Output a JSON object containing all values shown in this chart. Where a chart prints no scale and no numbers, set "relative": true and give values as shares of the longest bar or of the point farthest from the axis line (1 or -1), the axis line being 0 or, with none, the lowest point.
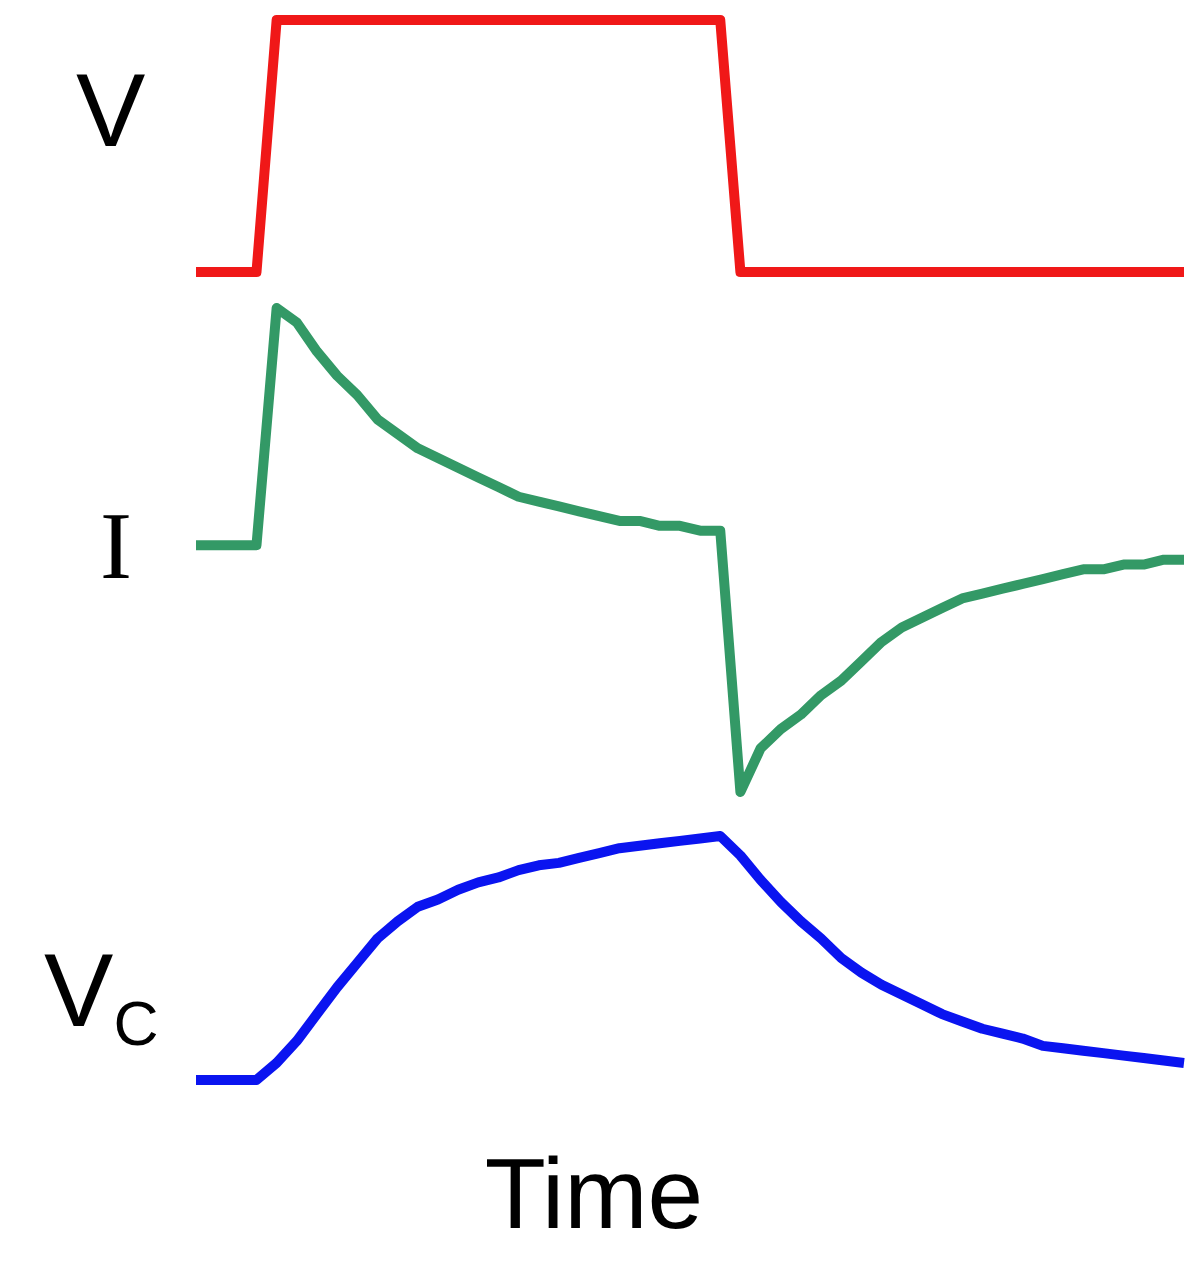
{
  "chart_data": [
    {
      "type": "line",
      "ylabel": "V",
      "relative": true,
      "grid": false,
      "legend": false,
      "marker": "none",
      "tick_labels": false,
      "categories": [
        null,
        null,
        null,
        null,
        null,
        null,
        null,
        null,
        null,
        null,
        null,
        null,
        null,
        null,
        null,
        null,
        null,
        null,
        null,
        null,
        null,
        null,
        null,
        null,
        null,
        null,
        null,
        null,
        null,
        null,
        null,
        null,
        null,
        null,
        null,
        null,
        null,
        null,
        null,
        null,
        null,
        null,
        null,
        null,
        null,
        null,
        null,
        null,
        null,
        null
      ],
      "series": [
        {
          "color": "#f01818",
          "values": [
            0,
            0,
            0,
            0,
            1,
            1,
            1,
            1,
            1,
            1,
            1,
            1,
            1,
            1,
            1,
            1,
            1,
            1,
            1,
            1,
            1,
            1,
            1,
            1,
            1,
            1,
            1,
            0,
            0,
            0,
            0,
            0,
            0,
            0,
            0,
            0,
            0,
            0,
            0,
            0,
            0,
            0,
            0,
            0,
            0,
            0,
            0,
            0,
            0,
            0
          ]
        }
      ]
    },
    {
      "type": "line",
      "ylabel": "I",
      "relative": true,
      "grid": false,
      "legend": false,
      "marker": "none",
      "tick_labels": false,
      "categories": [
        null,
        null,
        null,
        null,
        null,
        null,
        null,
        null,
        null,
        null,
        null,
        null,
        null,
        null,
        null,
        null,
        null,
        null,
        null,
        null,
        null,
        null,
        null,
        null,
        null,
        null,
        null,
        null,
        null,
        null,
        null,
        null,
        null,
        null,
        null,
        null,
        null,
        null,
        null,
        null,
        null,
        null,
        null,
        null,
        null,
        null,
        null,
        null,
        null,
        null
      ],
      "series": [
        {
          "color": "#339966",
          "values": [
            0.51,
            0.51,
            0.51,
            0.51,
            1,
            0.97,
            0.91,
            0.86,
            0.82,
            0.77,
            0.74,
            0.71,
            0.69,
            0.67,
            0.65,
            0.63,
            0.61,
            0.6,
            0.59,
            0.58,
            0.57,
            0.56,
            0.56,
            0.55,
            0.55,
            0.54,
            0.54,
            0,
            0.09,
            0.13,
            0.16,
            0.2,
            0.23,
            0.27,
            0.31,
            0.34,
            0.36,
            0.38,
            0.4,
            0.41,
            0.42,
            0.43,
            0.44,
            0.45,
            0.46,
            0.46,
            0.47,
            0.47,
            0.48,
            0.48
          ]
        }
      ]
    },
    {
      "type": "line",
      "ylabel": "V$_{C}$",
      "xlabel": "Time",
      "relative": true,
      "grid": false,
      "legend": false,
      "marker": "none",
      "tick_labels": false,
      "categories": [
        null,
        null,
        null,
        null,
        null,
        null,
        null,
        null,
        null,
        null,
        null,
        null,
        null,
        null,
        null,
        null,
        null,
        null,
        null,
        null,
        null,
        null,
        null,
        null,
        null,
        null,
        null,
        null,
        null,
        null,
        null,
        null,
        null,
        null,
        null,
        null,
        null,
        null,
        null,
        null,
        null,
        null,
        null,
        null,
        null,
        null,
        null,
        null,
        null,
        null
      ],
      "series": [
        {
          "color": "#0a14f0",
          "values": [
            0,
            0,
            0,
            0,
            0.07,
            0.16,
            0.27,
            0.38,
            0.48,
            0.58,
            0.65,
            0.71,
            0.74,
            0.78,
            0.81,
            0.83,
            0.86,
            0.88,
            0.89,
            0.91,
            0.93,
            0.95,
            0.96,
            0.97,
            0.98,
            0.99,
            1,
            0.92,
            0.82,
            0.73,
            0.65,
            0.58,
            0.5,
            0.44,
            0.39,
            0.35,
            0.31,
            0.27,
            0.24,
            0.21,
            0.19,
            0.17,
            0.14,
            0.13,
            0.12,
            0.11,
            0.1,
            0.09,
            0.08,
            0.07
          ]
        }
      ]
    }
  ]
}
